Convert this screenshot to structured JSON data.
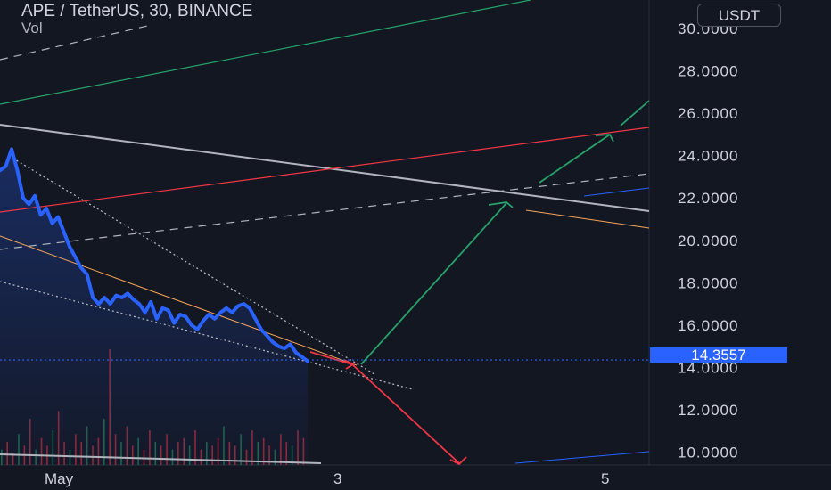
{
  "header": {
    "title": "APE / TetherUS, 30, BINANCE",
    "indicator": "Vol"
  },
  "currency_button": {
    "label": "USDT"
  },
  "colors": {
    "background": "#131722",
    "price_line": "#2962ff",
    "up_arrow": "#26a269",
    "down_arrow": "#f23645",
    "trend_gray": "#b2b5be",
    "channel_red": "#f23645",
    "channel_green": "#26a269",
    "orange": "#f7a55a"
  },
  "chart_data": {
    "type": "line",
    "ylim": [
      9.4,
      31.0
    ],
    "yticks": [
      "10.0000",
      "12.0000",
      "14.0000",
      "16.0000",
      "18.0000",
      "20.0000",
      "22.0000",
      "24.0000",
      "26.0000",
      "28.0000",
      "30.0000"
    ],
    "yticks_values": [
      10,
      12,
      14,
      16,
      18,
      20,
      22,
      24,
      26,
      28,
      30
    ],
    "xticks": [
      "May",
      "3",
      "5"
    ],
    "last_price": "14.3557",
    "series": [
      {
        "values": [
          23.3,
          23.5,
          24.3,
          23.3,
          22.0,
          21.7,
          22.1,
          21.2,
          21.5,
          20.8,
          21.1,
          20.4,
          19.7,
          19.2,
          18.7,
          18.4,
          17.3,
          17.0,
          17.3,
          17.0,
          17.4,
          17.3,
          17.5,
          17.2,
          17.0,
          16.6,
          17.1,
          16.3,
          16.8,
          16.7,
          16.1,
          16.5,
          16.4,
          16.0,
          15.8,
          16.2,
          16.5,
          16.3,
          16.6,
          16.8,
          16.6,
          16.9,
          17.0,
          16.8,
          16.3,
          15.8,
          15.5,
          15.2,
          15.0,
          14.9,
          15.1,
          14.7,
          14.5,
          14.3
        ]
      }
    ],
    "volume": [
      4,
      6,
      3,
      8,
      5,
      12,
      4,
      7,
      5,
      9,
      14,
      6,
      4,
      8,
      6,
      10,
      5,
      7,
      12,
      30,
      8,
      6,
      10,
      5,
      7,
      4,
      9,
      6,
      5,
      8,
      4,
      6,
      7,
      5,
      9,
      4,
      6,
      5,
      7,
      10,
      6,
      5,
      8,
      4,
      9,
      6,
      7,
      5,
      4,
      8,
      6,
      5,
      9,
      7
    ]
  }
}
